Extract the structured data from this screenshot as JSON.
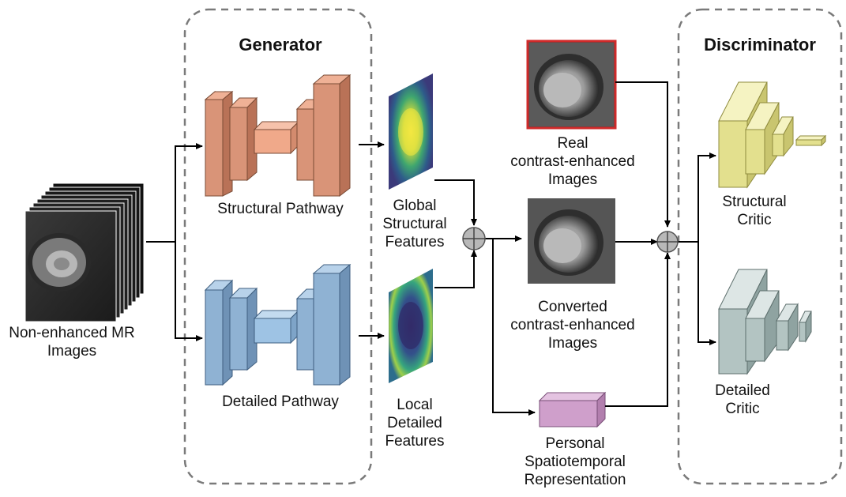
{
  "generator": {
    "title": "Generator",
    "structural_pathway_label": "Structural Pathway",
    "detailed_pathway_label": "Detailed Pathway"
  },
  "discriminator": {
    "title": "Discriminator",
    "structural_critic_label": "Structural\nCritic",
    "detailed_critic_label": "Detailed\nCritic"
  },
  "input": {
    "label": "Non-enhanced MR\nImages"
  },
  "features": {
    "global_label": "Global\nStructural\nFeatures",
    "local_label": "Local\nDetailed\nFeatures"
  },
  "images": {
    "real_label": "Real\ncontrast-enhanced\nImages",
    "converted_label": "Converted\ncontrast-enhanced\nImages"
  },
  "representation": {
    "label": "Personal\nSpatiotemporal\nRepresentation"
  },
  "colors": {
    "structural_block": "#d99478",
    "detailed_block": "#8fb2d3",
    "structural_critic": "#e3e08e",
    "detailed_critic": "#b3c4c2",
    "representation": "#cf9fcb",
    "real_image_border": "#d02a2a",
    "dashed_border": "#7a7a7a"
  }
}
